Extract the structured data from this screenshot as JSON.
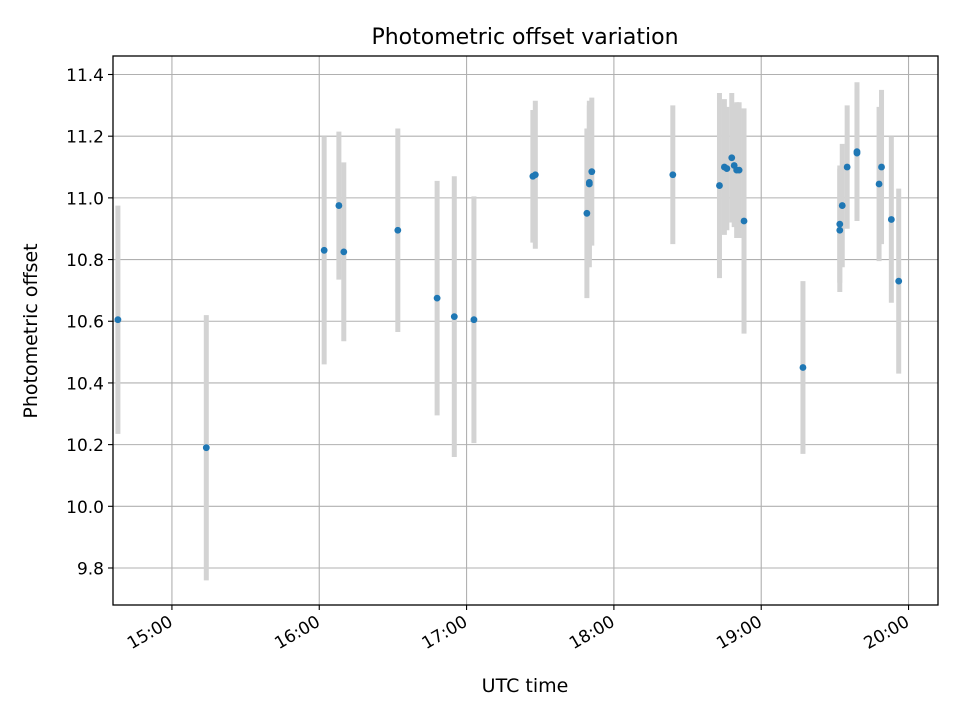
{
  "chart_data": {
    "type": "scatter",
    "title": "Photometric offset variation",
    "xlabel": "UTC time",
    "ylabel": "Photometric offset",
    "x_ticks": [
      "15:00",
      "16:00",
      "17:00",
      "18:00",
      "19:00",
      "20:00"
    ],
    "y_ticks": [
      "9.8",
      "10.0",
      "10.2",
      "10.4",
      "10.6",
      "10.8",
      "11.0",
      "11.2",
      "11.4"
    ],
    "xlim": [
      "14:36",
      "20:12"
    ],
    "ylim": [
      9.68,
      11.46
    ],
    "grid": true,
    "colors": {
      "points": "#1f77b4",
      "errorbars": "#d3d3d3",
      "grid": "#b0b0b0"
    },
    "series": [
      {
        "points": [
          {
            "x": "14:38",
            "y": 10.605,
            "yerr": 0.37
          },
          {
            "x": "15:14",
            "y": 10.19,
            "yerr": 0.43
          },
          {
            "x": "16:02",
            "y": 10.83,
            "yerr": 0.37
          },
          {
            "x": "16:08",
            "y": 10.975,
            "yerr": 0.24
          },
          {
            "x": "16:10",
            "y": 10.825,
            "yerr": 0.29
          },
          {
            "x": "16:32",
            "y": 10.895,
            "yerr": 0.33
          },
          {
            "x": "16:48",
            "y": 10.675,
            "yerr": 0.38
          },
          {
            "x": "16:55",
            "y": 10.615,
            "yerr": 0.455
          },
          {
            "x": "17:03",
            "y": 10.605,
            "yerr": 0.4
          },
          {
            "x": "17:27",
            "y": 11.07,
            "yerr": 0.215
          },
          {
            "x": "17:28",
            "y": 11.075,
            "yerr": 0.24
          },
          {
            "x": "17:49",
            "y": 10.95,
            "yerr": 0.275
          },
          {
            "x": "17:50",
            "y": 11.045,
            "yerr": 0.27
          },
          {
            "x": "17:50",
            "y": 11.05,
            "yerr": 0.25
          },
          {
            "x": "17:51",
            "y": 11.085,
            "yerr": 0.24
          },
          {
            "x": "18:24",
            "y": 11.075,
            "yerr": 0.225
          },
          {
            "x": "18:43",
            "y": 11.04,
            "yerr": 0.3
          },
          {
            "x": "18:45",
            "y": 11.1,
            "yerr": 0.22
          },
          {
            "x": "18:46",
            "y": 11.095,
            "yerr": 0.2
          },
          {
            "x": "18:48",
            "y": 11.13,
            "yerr": 0.21
          },
          {
            "x": "18:49",
            "y": 11.105,
            "yerr": 0.2
          },
          {
            "x": "18:50",
            "y": 11.09,
            "yerr": 0.22
          },
          {
            "x": "18:51",
            "y": 11.09,
            "yerr": 0.22
          },
          {
            "x": "18:53",
            "y": 10.925,
            "yerr": 0.365
          },
          {
            "x": "19:17",
            "y": 10.45,
            "yerr": 0.28
          },
          {
            "x": "19:32",
            "y": 10.895,
            "yerr": 0.2
          },
          {
            "x": "19:32",
            "y": 10.915,
            "yerr": 0.19
          },
          {
            "x": "19:33",
            "y": 10.975,
            "yerr": 0.2
          },
          {
            "x": "19:35",
            "y": 11.1,
            "yerr": 0.2
          },
          {
            "x": "19:39",
            "y": 11.145,
            "yerr": 0.21
          },
          {
            "x": "19:39",
            "y": 11.15,
            "yerr": 0.225
          },
          {
            "x": "19:48",
            "y": 11.045,
            "yerr": 0.25
          },
          {
            "x": "19:49",
            "y": 11.1,
            "yerr": 0.25
          },
          {
            "x": "19:53",
            "y": 10.93,
            "yerr": 0.27
          },
          {
            "x": "19:56",
            "y": 10.73,
            "yerr": 0.3
          }
        ]
      }
    ]
  }
}
